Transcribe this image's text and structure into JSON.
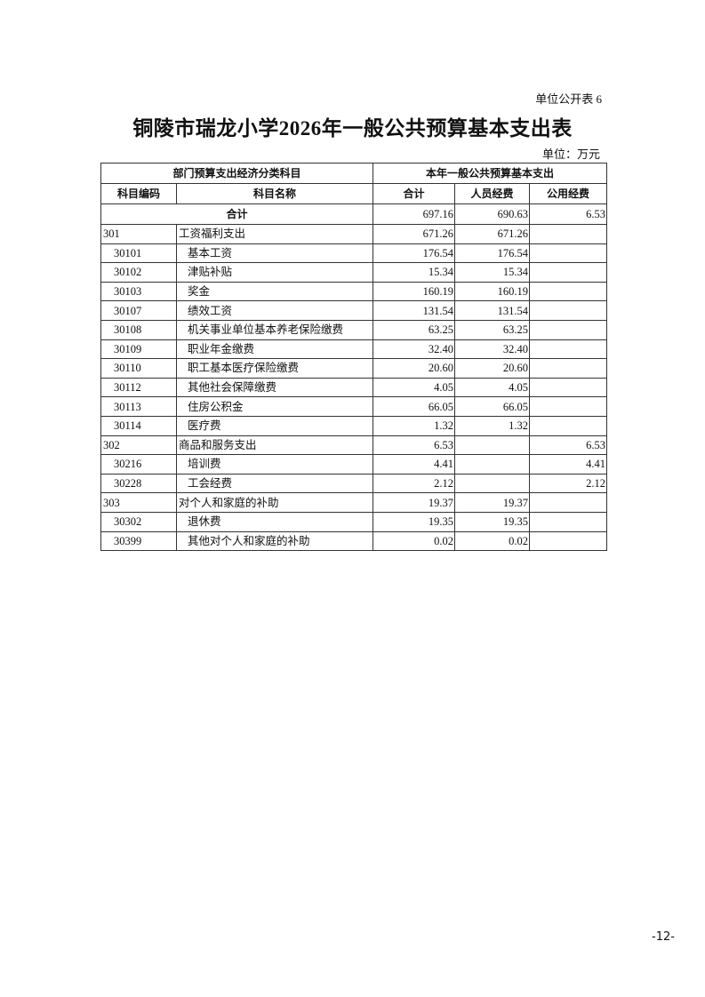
{
  "form_label": "单位公开表 6",
  "title": "铜陵市瑞龙小学2026年一般公共预算基本支出表",
  "unit": "单位：万元",
  "table": {
    "group_headers": [
      "部门预算支出经济分类科目",
      "本年一般公共预算基本支出"
    ],
    "columns": [
      "科目编码",
      "科目名称",
      "合计",
      "人员经费",
      "公用经费"
    ],
    "total": {
      "label": "合计",
      "total": "697.16",
      "personnel": "690.63",
      "public": "6.53"
    },
    "rows": [
      {
        "code": "301",
        "name": "工资福利支出",
        "total": "671.26",
        "personnel": "671.26",
        "public": "",
        "level": 1
      },
      {
        "code": "30101",
        "name": "基本工资",
        "total": "176.54",
        "personnel": "176.54",
        "public": "",
        "level": 2
      },
      {
        "code": "30102",
        "name": "津贴补贴",
        "total": "15.34",
        "personnel": "15.34",
        "public": "",
        "level": 2
      },
      {
        "code": "30103",
        "name": "奖金",
        "total": "160.19",
        "personnel": "160.19",
        "public": "",
        "level": 2
      },
      {
        "code": "30107",
        "name": "绩效工资",
        "total": "131.54",
        "personnel": "131.54",
        "public": "",
        "level": 2
      },
      {
        "code": "30108",
        "name": "机关事业单位基本养老保险缴费",
        "total": "63.25",
        "personnel": "63.25",
        "public": "",
        "level": 2
      },
      {
        "code": "30109",
        "name": "职业年金缴费",
        "total": "32.40",
        "personnel": "32.40",
        "public": "",
        "level": 2
      },
      {
        "code": "30110",
        "name": "职工基本医疗保险缴费",
        "total": "20.60",
        "personnel": "20.60",
        "public": "",
        "level": 2
      },
      {
        "code": "30112",
        "name": "其他社会保障缴费",
        "total": "4.05",
        "personnel": "4.05",
        "public": "",
        "level": 2
      },
      {
        "code": "30113",
        "name": "住房公积金",
        "total": "66.05",
        "personnel": "66.05",
        "public": "",
        "level": 2
      },
      {
        "code": "30114",
        "name": "医疗费",
        "total": "1.32",
        "personnel": "1.32",
        "public": "",
        "level": 2
      },
      {
        "code": "302",
        "name": "商品和服务支出",
        "total": "6.53",
        "personnel": "",
        "public": "6.53",
        "level": 1
      },
      {
        "code": "30216",
        "name": "培训费",
        "total": "4.41",
        "personnel": "",
        "public": "4.41",
        "level": 2
      },
      {
        "code": "30228",
        "name": "工会经费",
        "total": "2.12",
        "personnel": "",
        "public": "2.12",
        "level": 2
      },
      {
        "code": "303",
        "name": "对个人和家庭的补助",
        "total": "19.37",
        "personnel": "19.37",
        "public": "",
        "level": 1
      },
      {
        "code": "30302",
        "name": "退休费",
        "total": "19.35",
        "personnel": "19.35",
        "public": "",
        "level": 2
      },
      {
        "code": "30399",
        "name": "其他对个人和家庭的补助",
        "total": "0.02",
        "personnel": "0.02",
        "public": "",
        "level": 2
      }
    ]
  },
  "page_number": "-12-"
}
